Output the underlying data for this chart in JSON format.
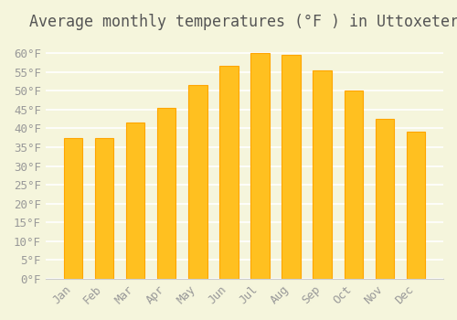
{
  "title": "Average monthly temperatures (°F ) in Uttoxeter",
  "months": [
    "Jan",
    "Feb",
    "Mar",
    "Apr",
    "May",
    "Jun",
    "Jul",
    "Aug",
    "Sep",
    "Oct",
    "Nov",
    "Dec"
  ],
  "values": [
    37.5,
    37.5,
    41.5,
    45.5,
    51.5,
    56.5,
    60.0,
    59.5,
    55.5,
    50.0,
    42.5,
    39.0
  ],
  "bar_color_face": "#FFC020",
  "bar_color_edge": "#FFA500",
  "background_color": "#F5F5DC",
  "grid_color": "#FFFFFF",
  "yticks": [
    0,
    5,
    10,
    15,
    20,
    25,
    30,
    35,
    40,
    45,
    50,
    55,
    60
  ],
  "ylim": [
    0,
    63
  ],
  "title_fontsize": 12,
  "tick_fontsize": 9,
  "font_family": "monospace"
}
